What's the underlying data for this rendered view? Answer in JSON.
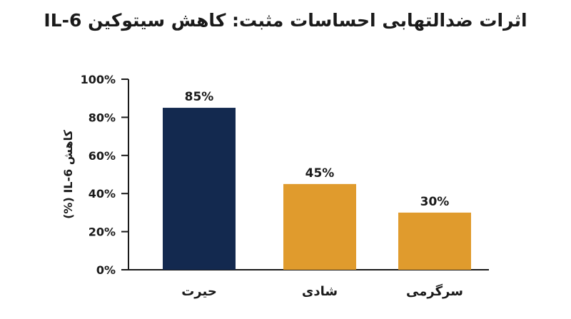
{
  "chart_data": {
    "type": "bar",
    "title": "اثرات ضدالتهابی احساسات مثبت: کاهش سیتوکین IL-6",
    "ylabel": "کاهش IL-6 (%)",
    "xlabel": "",
    "categories": [
      "حیرت",
      "شادی",
      "سرگرمی"
    ],
    "values": [
      85,
      45,
      30
    ],
    "data_labels": [
      "85%",
      "45%",
      "30%"
    ],
    "colors": [
      "#13294f",
      "#e09b2d",
      "#e09b2d"
    ],
    "ylim": [
      0,
      100
    ],
    "yticks": [
      0,
      20,
      40,
      60,
      80,
      100
    ],
    "ytick_labels": [
      "0%",
      "20%",
      "40%",
      "60%",
      "80%",
      "100%"
    ],
    "grid": false,
    "legend": "none"
  }
}
